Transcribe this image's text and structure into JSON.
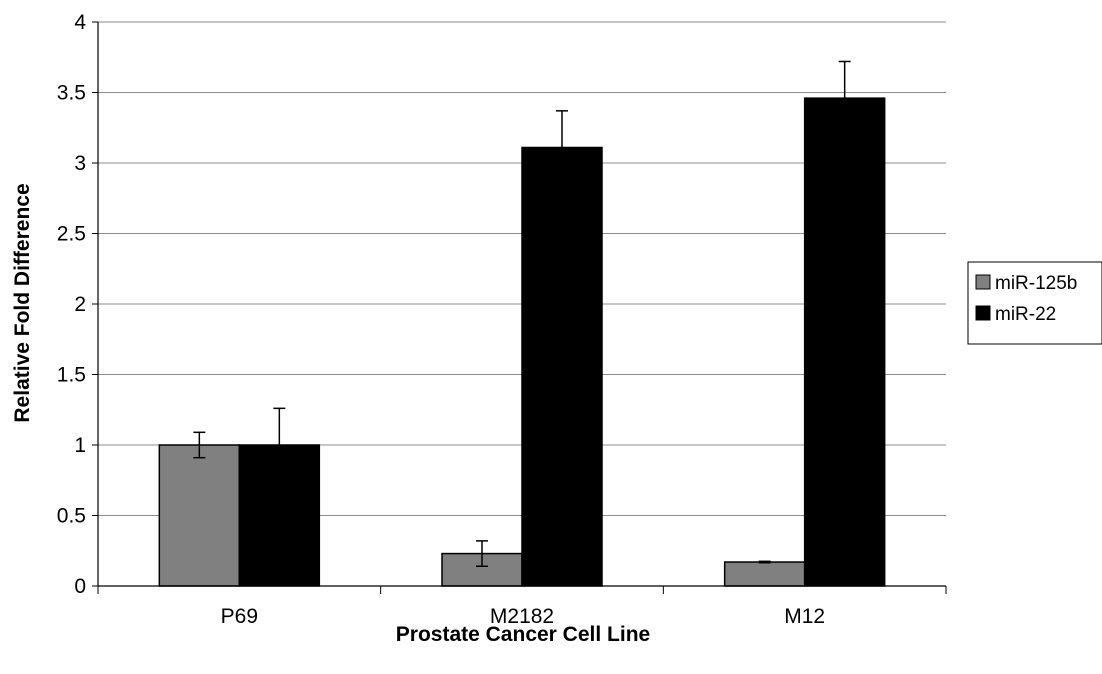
{
  "chart_data": {
    "type": "bar",
    "xlabel": "Prostate Cancer Cell Line",
    "ylabel": "Relative Fold Difference",
    "categories": [
      "P69",
      "M2182",
      "M12"
    ],
    "series": [
      {
        "name": "miR-125b",
        "color": "#808080",
        "values": [
          1.0,
          0.23,
          0.17
        ],
        "errors": [
          0.09,
          0.09,
          0.005
        ]
      },
      {
        "name": "miR-22",
        "color": "#000000",
        "values": [
          1.0,
          3.11,
          3.46
        ],
        "errors": [
          0.26,
          0.26,
          0.26
        ]
      }
    ],
    "ylim": [
      0,
      4
    ],
    "yticks": [
      "0",
      "0.5",
      "1",
      "1.5",
      "2",
      "2.5",
      "3",
      "3.5",
      "4"
    ],
    "grid": true,
    "legend_position": "right"
  }
}
